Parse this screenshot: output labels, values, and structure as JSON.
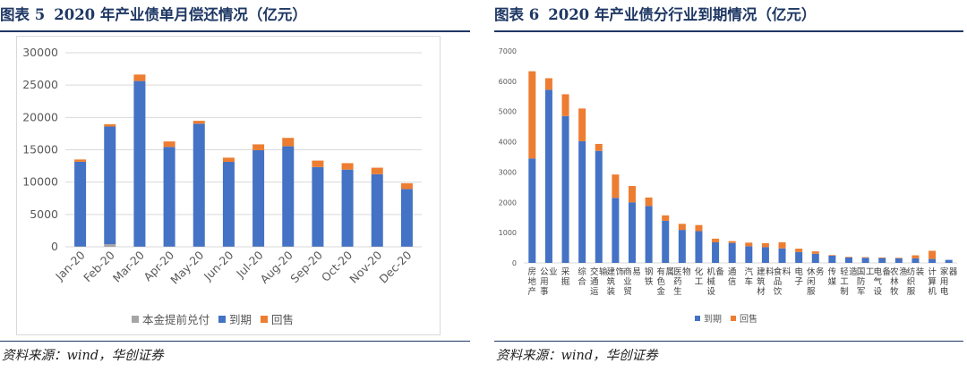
{
  "left": {
    "fig_no": "图表 5",
    "title": "2020 年产业债单月偿还情况（亿元）",
    "source": "资料来源：wind，华创证券"
  },
  "right": {
    "fig_no": "图表 6",
    "title": "2020 年产业债分行业到期情况（亿元）",
    "source": "资料来源：wind，华创证券"
  },
  "colors": {
    "prepay": "#a5a5a5",
    "maturity": "#4472c4",
    "putback": "#ed7d31",
    "navy": "#1f3864"
  },
  "chart_data": [
    {
      "type": "bar",
      "stacked": true,
      "categories": [
        "Jan-20",
        "Feb-20",
        "Mar-20",
        "Apr-20",
        "May-20",
        "Jun-20",
        "Jul-20",
        "Aug-20",
        "Sep-20",
        "Oct-20",
        "Nov-20",
        "Dec-20"
      ],
      "series": [
        {
          "name": "本金提前兑付",
          "values": [
            50,
            400,
            30,
            40,
            30,
            30,
            40,
            40,
            30,
            30,
            30,
            30
          ]
        },
        {
          "name": "到期",
          "values": [
            13100,
            18200,
            25600,
            15400,
            19000,
            13100,
            14900,
            15500,
            12300,
            11900,
            11200,
            8900
          ]
        },
        {
          "name": "回售",
          "values": [
            350,
            350,
            1000,
            850,
            450,
            650,
            900,
            1300,
            1000,
            1000,
            1000,
            900
          ]
        }
      ],
      "yticks": [
        0,
        5000,
        10000,
        15000,
        20000,
        25000,
        30000
      ],
      "ylim": [
        0,
        30000
      ],
      "legend_position": "bottom"
    },
    {
      "type": "bar",
      "stacked": true,
      "categories": [
        "房地产",
        "公用事业",
        "采掘",
        "综合",
        "交通运输",
        "建筑装饰",
        "商业贸易",
        "钢铁",
        "有色金属",
        "医药生物",
        "化工",
        "机械设备",
        "通信",
        "汽车",
        "建筑材料",
        "食品饮料",
        "电子",
        "休闲服务",
        "传媒",
        "轻工制造",
        "国防军工",
        "电气设备",
        "农林牧渔",
        "纺织服装",
        "计算机",
        "家用电器"
      ],
      "series": [
        {
          "name": "到期",
          "values": [
            3450,
            5720,
            4850,
            4020,
            3700,
            2150,
            2000,
            1880,
            1390,
            1090,
            1050,
            680,
            660,
            550,
            520,
            480,
            360,
            300,
            240,
            180,
            170,
            160,
            150,
            150,
            130,
            100
          ]
        },
        {
          "name": "回售",
          "values": [
            2880,
            380,
            720,
            1080,
            230,
            770,
            540,
            280,
            180,
            200,
            200,
            120,
            60,
            120,
            130,
            200,
            110,
            80,
            20,
            20,
            20,
            20,
            20,
            100,
            270,
            0
          ]
        }
      ],
      "yticks": [
        0,
        1000,
        2000,
        3000,
        4000,
        5000,
        6000,
        7000
      ],
      "ylim": [
        0,
        7000
      ],
      "legend_position": "bottom"
    }
  ]
}
